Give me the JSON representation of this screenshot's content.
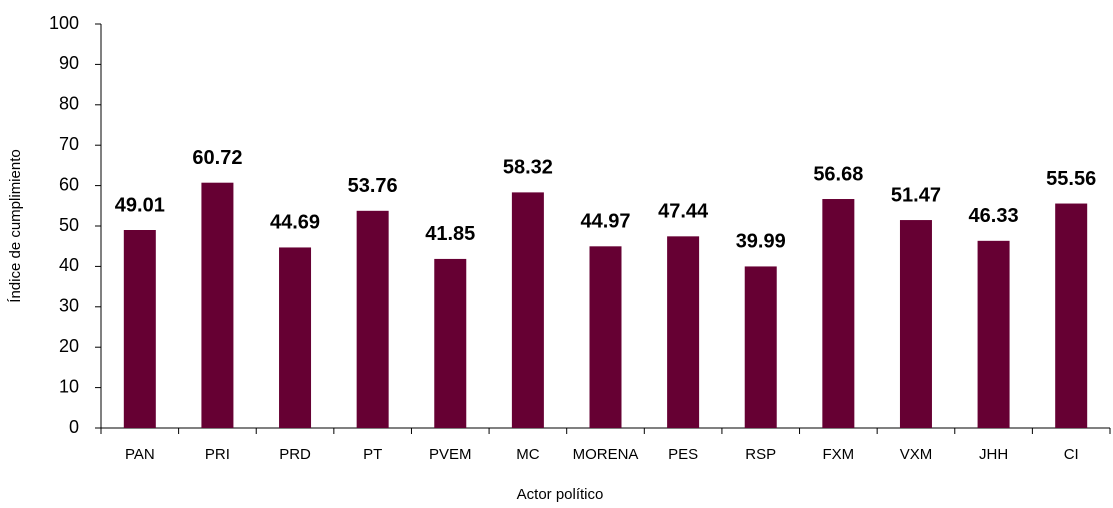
{
  "chart_data": {
    "type": "bar",
    "x_label": "Actor político",
    "y_label": "Índice de cumplimiento",
    "categories": [
      "PAN",
      "PRI",
      "PRD",
      "PT",
      "PVEM",
      "MC",
      "MORENA",
      "PES",
      "RSP",
      "FXM",
      "VXM",
      "JHH",
      "CI"
    ],
    "values": [
      49.01,
      60.72,
      44.69,
      53.76,
      41.85,
      58.32,
      44.97,
      47.44,
      39.99,
      56.68,
      51.47,
      46.33,
      55.56
    ],
    "color": "#660033",
    "ylim": [
      0,
      100
    ],
    "yticks": [
      0,
      10,
      20,
      30,
      40,
      50,
      60,
      70,
      80,
      90,
      100
    ],
    "grid": false
  }
}
